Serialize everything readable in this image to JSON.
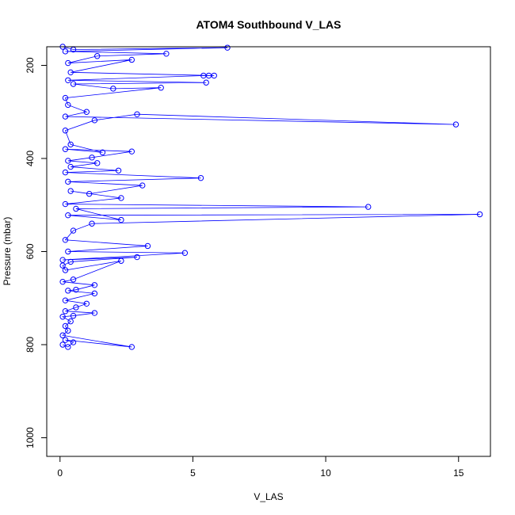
{
  "chart_data": {
    "type": "line",
    "title": "ATOM4 Southbound V_LAS",
    "xlabel": "V_LAS",
    "ylabel": "Pressure (mbar)",
    "xlim": [
      -0.5,
      16.2
    ],
    "ylim": [
      1040,
      160
    ],
    "y_inverted": true,
    "x_ticks": [
      0,
      5,
      10,
      15
    ],
    "y_ticks": [
      200,
      400,
      600,
      800,
      1000
    ],
    "grid": false,
    "color": "#0000ff",
    "marker": "open-circle",
    "series": [
      {
        "name": "",
        "points": [
          [
            0.1,
            800
          ],
          [
            0.3,
            805
          ],
          [
            0.5,
            795
          ],
          [
            0.2,
            790
          ],
          [
            2.7,
            805
          ],
          [
            0.1,
            780
          ],
          [
            0.3,
            770
          ],
          [
            0.2,
            760
          ],
          [
            0.4,
            750
          ],
          [
            0.1,
            740
          ],
          [
            0.5,
            738
          ],
          [
            1.3,
            732
          ],
          [
            0.2,
            728
          ],
          [
            0.6,
            720
          ],
          [
            1.0,
            712
          ],
          [
            0.2,
            705
          ],
          [
            1.3,
            690
          ],
          [
            0.3,
            684
          ],
          [
            0.6,
            682
          ],
          [
            1.3,
            672
          ],
          [
            0.1,
            665
          ],
          [
            0.5,
            660
          ],
          [
            2.3,
            620
          ],
          [
            0.2,
            640
          ],
          [
            0.1,
            630
          ],
          [
            0.4,
            622
          ],
          [
            2.9,
            612
          ],
          [
            0.1,
            618
          ],
          [
            4.7,
            603
          ],
          [
            0.3,
            600
          ],
          [
            3.3,
            588
          ],
          [
            0.2,
            575
          ],
          [
            0.5,
            555
          ],
          [
            1.2,
            540
          ],
          [
            15.8,
            520
          ],
          [
            0.3,
            522
          ],
          [
            2.3,
            532
          ],
          [
            0.6,
            508
          ],
          [
            11.6,
            504
          ],
          [
            0.2,
            498
          ],
          [
            2.3,
            485
          ],
          [
            0.4,
            470
          ],
          [
            1.1,
            476
          ],
          [
            3.1,
            458
          ],
          [
            0.3,
            450
          ],
          [
            5.3,
            442
          ],
          [
            0.2,
            430
          ],
          [
            2.2,
            426
          ],
          [
            0.4,
            418
          ],
          [
            1.4,
            410
          ],
          [
            0.3,
            405
          ],
          [
            1.2,
            398
          ],
          [
            2.7,
            385
          ],
          [
            0.2,
            380
          ],
          [
            1.6,
            387
          ],
          [
            0.4,
            370
          ],
          [
            0.2,
            340
          ],
          [
            1.3,
            318
          ],
          [
            2.9,
            305
          ],
          [
            14.9,
            327
          ],
          [
            0.2,
            310
          ],
          [
            1.0,
            300
          ],
          [
            0.3,
            285
          ],
          [
            0.2,
            270
          ],
          [
            3.8,
            248
          ],
          [
            2.0,
            250
          ],
          [
            0.5,
            240
          ],
          [
            5.5,
            237
          ],
          [
            0.3,
            232
          ],
          [
            5.4,
            222
          ],
          [
            5.6,
            222
          ],
          [
            5.8,
            222
          ],
          [
            0.4,
            215
          ],
          [
            2.7,
            188
          ],
          [
            0.3,
            195
          ],
          [
            1.4,
            180
          ],
          [
            4.0,
            175
          ],
          [
            0.2,
            170
          ],
          [
            6.3,
            162
          ],
          [
            0.5,
            166
          ],
          [
            0.1,
            160
          ]
        ]
      }
    ]
  }
}
